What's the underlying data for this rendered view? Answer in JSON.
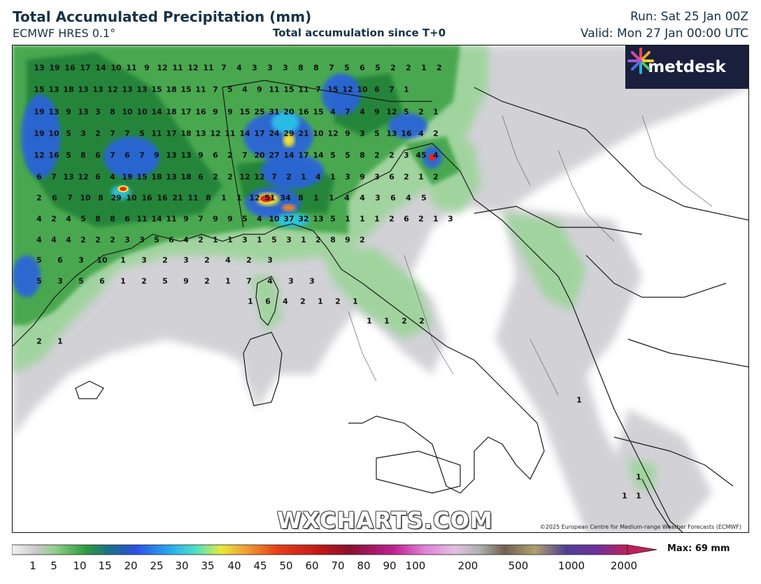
{
  "header": {
    "title": "Total Accumulated Precipitation (mm)",
    "model": "ECMWF HRES 0.1°",
    "subtitle": "Total accumulation since T+0",
    "run": "Run: Sat 25 Jan 00Z",
    "valid": "Valid: Mon 27 Jan 00:00 UTC"
  },
  "brand": {
    "name": "metdesk",
    "icon": "metdesk-star-logo-icon"
  },
  "watermark": "WXCHARTS.COM",
  "copyright": "©2025 European Centre for Medium-range Weather Forecasts (ECMWF)",
  "legend": {
    "ticks": [
      "1",
      "5",
      "10",
      "15",
      "20",
      "25",
      "30",
      "35",
      "40",
      "45",
      "50",
      "60",
      "70",
      "80",
      "90",
      "100",
      "200",
      "500",
      "1000",
      "2000"
    ],
    "max_label": "Max: 69 mm"
  },
  "colors": {
    "grey": "#c6c6cc",
    "light_green": "#9ed49b",
    "green": "#3fa447",
    "dark_green": "#1c7d36",
    "blue": "#2c62df",
    "cyan": "#29c4e8",
    "yellow": "#f0e232",
    "red": "#e22b18",
    "border": "#1a1a1a",
    "brand_bg": "#1a1f3d"
  },
  "grid_values": [
    [
      "13",
      "19",
      "16",
      "17",
      "14",
      "10",
      "11",
      "9",
      "12",
      "11",
      "12",
      "11",
      "7",
      "4",
      "3",
      "3",
      "3",
      "8",
      "8",
      "7",
      "5",
      "6",
      "5",
      "2",
      "2",
      "1",
      "2"
    ],
    [
      "15",
      "13",
      "18",
      "13",
      "13",
      "12",
      "13",
      "13",
      "15",
      "18",
      "15",
      "11",
      "7",
      "5",
      "4",
      "9",
      "11",
      "15",
      "11",
      "7",
      "15",
      "12",
      "10",
      "6",
      "7",
      "1"
    ],
    [
      "19",
      "13",
      "9",
      "13",
      "3",
      "8",
      "10",
      "10",
      "14",
      "18",
      "17",
      "16",
      "9",
      "9",
      "15",
      "25",
      "31",
      "20",
      "16",
      "15",
      "4",
      "7",
      "4",
      "9",
      "12",
      "5",
      "2",
      "1"
    ],
    [
      "19",
      "10",
      "5",
      "3",
      "2",
      "7",
      "7",
      "5",
      "11",
      "17",
      "18",
      "13",
      "12",
      "11",
      "14",
      "17",
      "24",
      "29",
      "21",
      "10",
      "12",
      "9",
      "3",
      "5",
      "13",
      "16",
      "4",
      "2"
    ],
    [
      "12",
      "16",
      "5",
      "8",
      "6",
      "7",
      "6",
      "7",
      "9",
      "13",
      "13",
      "9",
      "6",
      "2",
      "7",
      "20",
      "27",
      "14",
      "17",
      "14",
      "5",
      "5",
      "8",
      "2",
      "2",
      "3",
      "45",
      "4"
    ],
    [
      "6",
      "7",
      "13",
      "12",
      "6",
      "4",
      "19",
      "15",
      "18",
      "13",
      "18",
      "6",
      "2",
      "2",
      "12",
      "12",
      "7",
      "2",
      "1",
      "4",
      "1",
      "3",
      "9",
      "3",
      "6",
      "2",
      "1",
      "2"
    ],
    [
      "2",
      "6",
      "7",
      "10",
      "8",
      "29",
      "10",
      "16",
      "16",
      "21",
      "11",
      "8",
      "1",
      "1",
      "12",
      "51",
      "34",
      "8",
      "1",
      "1",
      "4",
      "4",
      "3",
      "6",
      "4",
      "5"
    ],
    [
      "4",
      "2",
      "4",
      "5",
      "8",
      "8",
      "6",
      "11",
      "14",
      "11",
      "9",
      "7",
      "9",
      "9",
      "5",
      "4",
      "10",
      "37",
      "32",
      "13",
      "5",
      "1",
      "1",
      "1",
      "2",
      "6",
      "2",
      "1",
      "3"
    ],
    [
      "4",
      "4",
      "4",
      "2",
      "2",
      "2",
      "3",
      "3",
      "5",
      "6",
      "4",
      "2",
      "1",
      "1",
      "3",
      "1",
      "5",
      "3",
      "1",
      "2",
      "8",
      "9",
      "2"
    ],
    [
      "5",
      "6",
      "3",
      "10",
      "1",
      "3",
      "2",
      "3",
      "2",
      "4",
      "2",
      "3"
    ],
    [
      "5",
      "3",
      "5",
      "6",
      "1",
      "2",
      "5",
      "9",
      "2",
      "1",
      "7",
      "4",
      "3",
      "3"
    ],
    [
      "1",
      "6",
      "4",
      "2",
      "1",
      "2",
      "1"
    ],
    [
      "1",
      "1",
      "2",
      "2"
    ],
    [
      "2",
      "1"
    ],
    [
      "1"
    ],
    [
      "1"
    ],
    [
      "1",
      "1"
    ]
  ]
}
